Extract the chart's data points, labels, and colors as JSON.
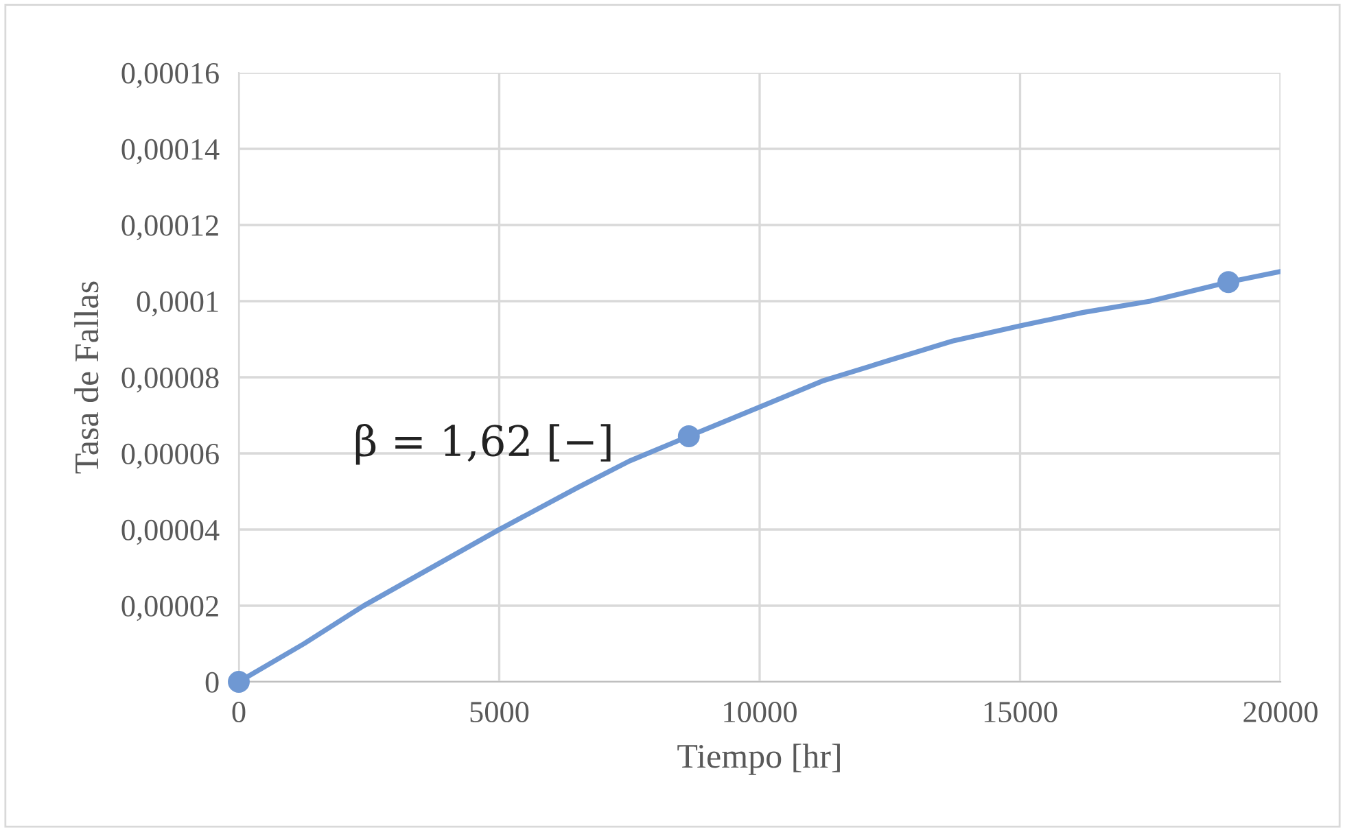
{
  "chart_data": {
    "type": "line",
    "xlabel": "Tiempo [hr]",
    "ylabel": "Tasa de Fallas",
    "annotations": [
      "β = 1,62 [−]"
    ],
    "series": [
      {
        "color": "#6f98d3",
        "marker": "none",
        "x": [
          0,
          1250,
          2400,
          3700,
          5000,
          6500,
          7500,
          8640,
          10000,
          11200,
          12500,
          13700,
          15000,
          16200,
          17500,
          19000,
          20000
        ],
        "values": [
          0,
          1e-05,
          2e-05,
          3e-05,
          4e-05,
          5.1e-05,
          5.8e-05,
          6.45e-05,
          7.22e-05,
          7.9e-05,
          8.45e-05,
          8.95e-05,
          9.35e-05,
          9.7e-05,
          0.0001,
          0.000105,
          0.0001078
        ]
      },
      {
        "type": "scatter",
        "color": "#6f98d3",
        "marker": "circle",
        "x": [
          0,
          8640,
          19000
        ],
        "values": [
          0,
          6.45e-05,
          0.000105
        ]
      }
    ],
    "xlim": [
      0,
      20000
    ],
    "xticks": [
      0,
      5000,
      10000,
      15000,
      20000
    ],
    "ylim": [
      0,
      0.00016
    ],
    "yticks": [
      0,
      {
        "value": 2e-05,
        "label": "0,00002"
      },
      {
        "value": 4e-05,
        "label": "0,00004"
      },
      {
        "value": 6e-05,
        "label": "0,00006"
      },
      {
        "value": 8e-05,
        "label": "0,00008"
      },
      {
        "value": 0.0001,
        "label": "0,0001"
      },
      {
        "value": 0.00012,
        "label": "0,00012"
      },
      {
        "value": 0.00014,
        "label": "0,00014"
      },
      {
        "value": 0.00016,
        "label": "0,00016"
      }
    ],
    "grid": true
  }
}
